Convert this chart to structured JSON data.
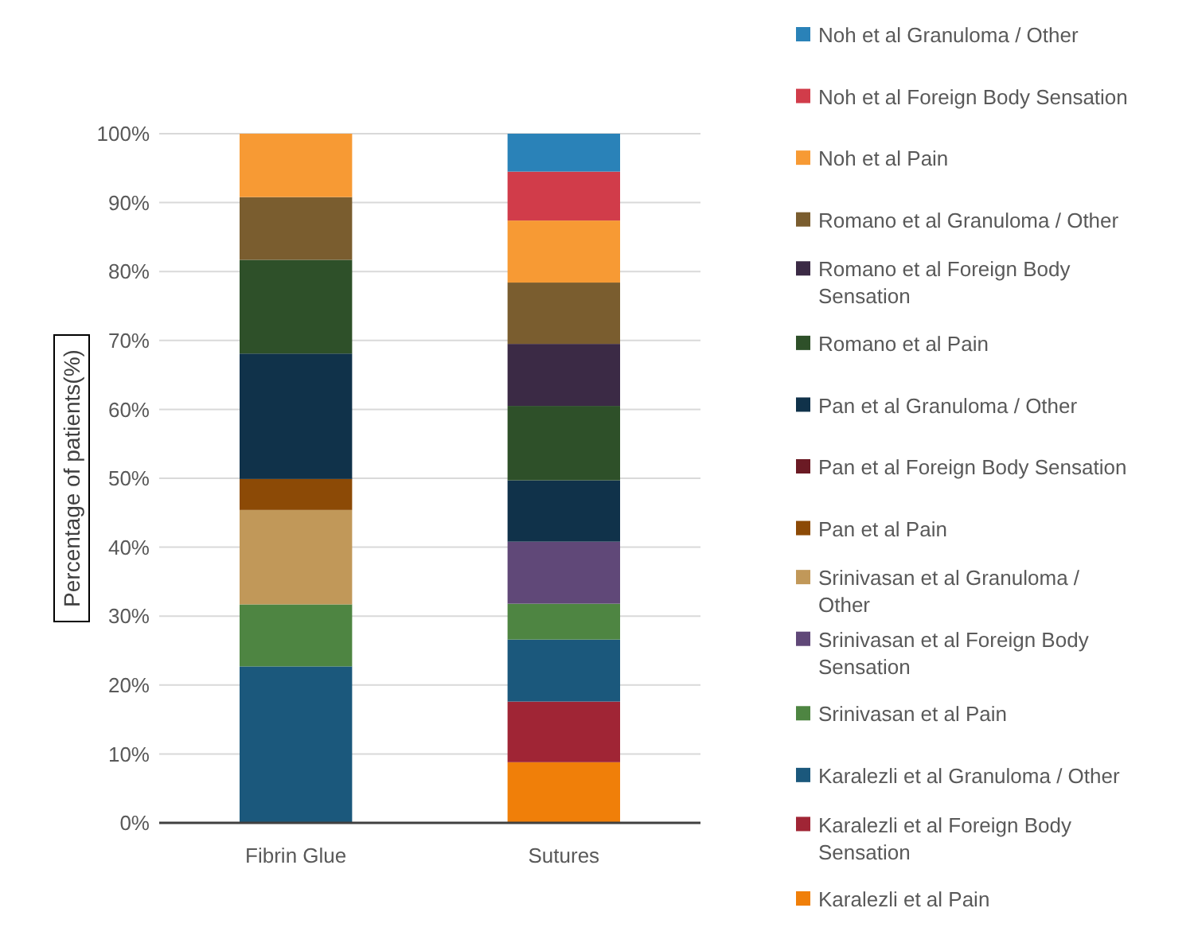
{
  "chart_data": {
    "type": "bar",
    "stacked": true,
    "ylabel": "Percentage of patients(%)",
    "categories": [
      "Fibrin Glue",
      "Sutures"
    ],
    "ylim": [
      0,
      100
    ],
    "yticks": [
      {
        "value": 0,
        "label": "0%"
      },
      {
        "value": 10,
        "label": "10%"
      },
      {
        "value": 20,
        "label": "20%"
      },
      {
        "value": 30,
        "label": "30%"
      },
      {
        "value": 40,
        "label": "40%"
      },
      {
        "value": 50,
        "label": "50%"
      },
      {
        "value": 60,
        "label": "60%"
      },
      {
        "value": 70,
        "label": "70%"
      },
      {
        "value": 80,
        "label": "80%"
      },
      {
        "value": 90,
        "label": "90%"
      },
      {
        "value": 100,
        "label": "100%"
      }
    ],
    "grid": "y",
    "legend": "right",
    "series": [
      {
        "name": "Karalezli et al Pain",
        "color": "#f07f09",
        "values": [
          0,
          8.8
        ]
      },
      {
        "name": "Karalezli et al Foreign Body Sensation",
        "color": "#a02535",
        "values": [
          0,
          8.8
        ]
      },
      {
        "name": "Karalezli et al Granuloma / Other",
        "color": "#1b587c",
        "values": [
          22.7,
          9.0
        ]
      },
      {
        "name": "Srinivasan et al Pain",
        "color": "#4e8542",
        "values": [
          9.0,
          5.2
        ]
      },
      {
        "name": "Srinivasan et al Foreign Body Sensation",
        "color": "#604878",
        "values": [
          0,
          9.0
        ]
      },
      {
        "name": "Srinivasan et al Granuloma / Other",
        "color": "#c19859",
        "values": [
          13.7,
          0
        ]
      },
      {
        "name": "Pan et al Pain",
        "color": "#8c4a06",
        "values": [
          4.5,
          0
        ]
      },
      {
        "name": "Pan et al Foreign Body Sensation",
        "color": "#6b1a24",
        "values": [
          0,
          0
        ]
      },
      {
        "name": "Pan et al Granuloma / Other",
        "color": "#10324a",
        "values": [
          18.2,
          8.9
        ]
      },
      {
        "name": "Romano et al Pain",
        "color": "#2e5029",
        "values": [
          13.6,
          10.8
        ]
      },
      {
        "name": "Romano et al Foreign Body Sensation",
        "color": "#3b2a45",
        "values": [
          0,
          9.0
        ]
      },
      {
        "name": "Romano et al Granuloma / Other",
        "color": "#7a5d2f",
        "values": [
          9.1,
          8.9
        ]
      },
      {
        "name": "Noh et al Pain",
        "color": "#f79a34",
        "values": [
          9.2,
          9.0
        ]
      },
      {
        "name": "Noh et al Foreign Body Sensation",
        "color": "#d13c4a",
        "values": [
          0,
          7.1
        ]
      },
      {
        "name": "Noh et al Granuloma / Other",
        "color": "#2a82b8",
        "values": [
          0,
          5.5
        ]
      }
    ]
  }
}
